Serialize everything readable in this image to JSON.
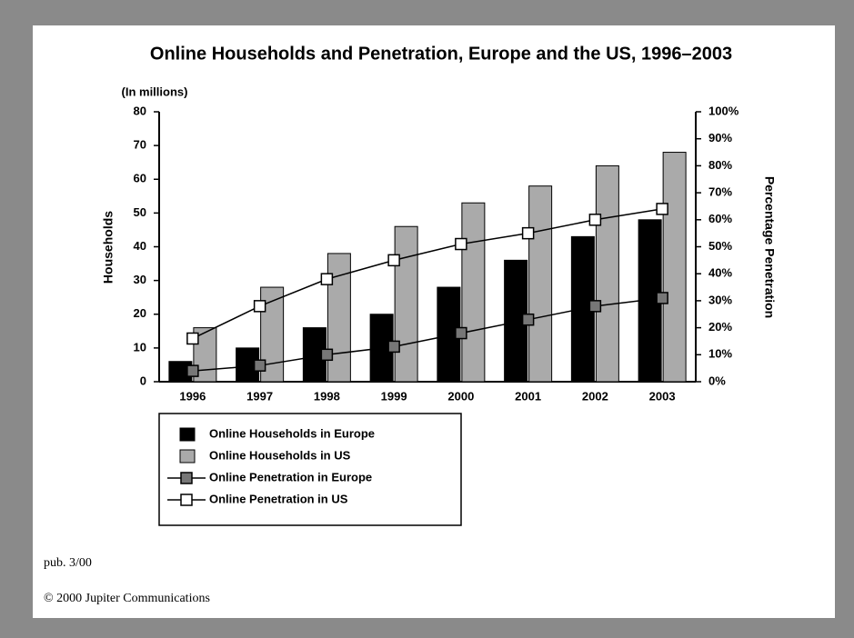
{
  "chart_data": {
    "type": "bar",
    "title": "Online Households and Penetration, Europe and the US, 1996–2003",
    "y_unit_label": "(In millions)",
    "y_label": "Households",
    "y2_label": "Percentage Penetration",
    "categories": [
      "1996",
      "1997",
      "1998",
      "1999",
      "2000",
      "2001",
      "2002",
      "2003"
    ],
    "series": [
      {
        "name": "Online Households in Europe",
        "type": "bar",
        "color": "#000000",
        "values": [
          6,
          10,
          16,
          20,
          28,
          36,
          43,
          48
        ]
      },
      {
        "name": "Online Households in US",
        "type": "bar",
        "color": "#aaaaaa",
        "values": [
          16,
          28,
          38,
          46,
          53,
          58,
          64,
          68
        ]
      },
      {
        "name": "Online Penetration in Europe",
        "type": "line",
        "axis": "y2",
        "color": "#777777",
        "values": [
          4,
          6,
          10,
          13,
          18,
          23,
          28,
          31
        ]
      },
      {
        "name": "Online Penetration in US",
        "type": "line",
        "axis": "y2",
        "color": "#ffffff",
        "values": [
          16,
          28,
          38,
          45,
          51,
          55,
          60,
          64
        ]
      }
    ],
    "ylim": [
      0,
      80
    ],
    "yticks": [
      0,
      10,
      20,
      30,
      40,
      50,
      60,
      70,
      80
    ],
    "y2lim": [
      0,
      100
    ],
    "y2ticks": [
      {
        "value": 0,
        "label": "0%"
      },
      {
        "value": 10,
        "label": "10%"
      },
      {
        "value": 20,
        "label": "20%"
      },
      {
        "value": 30,
        "label": "30%"
      },
      {
        "value": 40,
        "label": "40%"
      },
      {
        "value": 50,
        "label": "50%"
      },
      {
        "value": 60,
        "label": "60%"
      },
      {
        "value": 70,
        "label": "70%"
      },
      {
        "value": 80,
        "label": "80%"
      },
      {
        "value": 90,
        "label": "90%"
      },
      {
        "value": 100,
        "label": "100%"
      }
    ],
    "grid": false,
    "footnotes": [
      "pub. 3/00",
      "© 2000 Jupiter Communications"
    ]
  }
}
